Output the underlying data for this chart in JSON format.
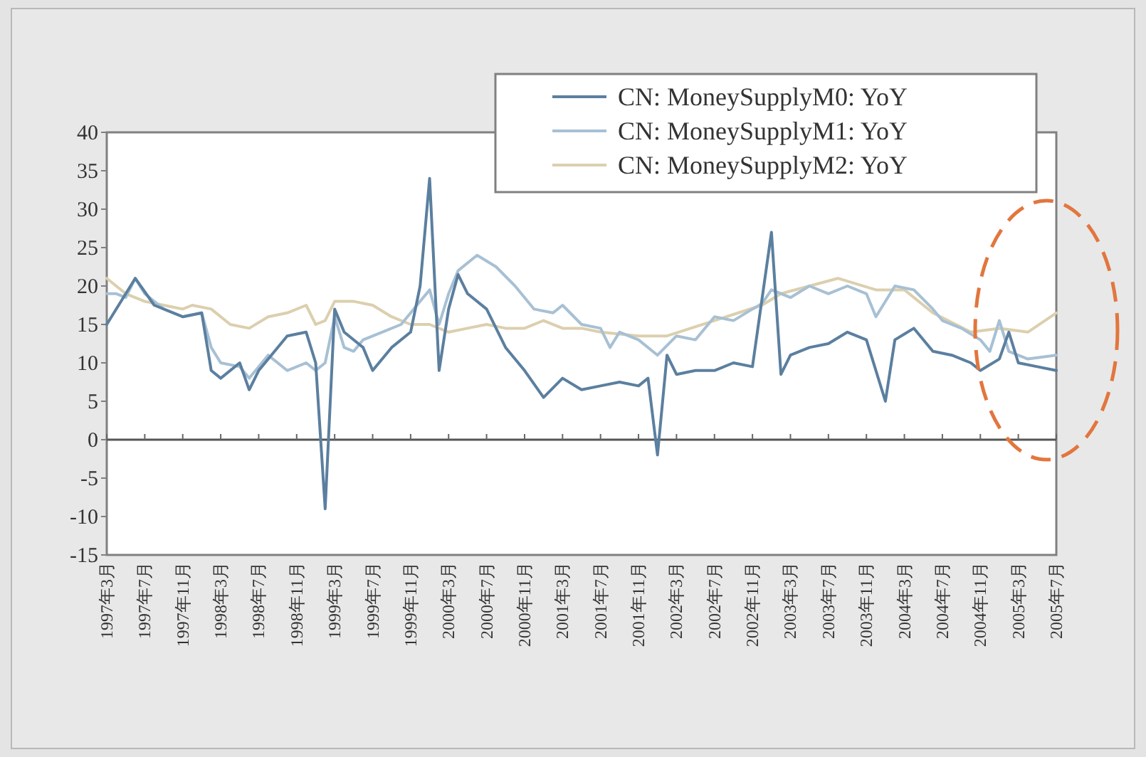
{
  "chart_data": {
    "type": "line",
    "xlim": [
      "1997-03",
      "2005-07"
    ],
    "ylim": [
      -15,
      40
    ],
    "yticks": [
      -15,
      -10,
      -5,
      0,
      5,
      10,
      15,
      20,
      25,
      30,
      35,
      40
    ],
    "xticks": [
      {
        "value": "1997-03",
        "label": "1997年3月"
      },
      {
        "value": "1997-07",
        "label": "1997年7月"
      },
      {
        "value": "1997-11",
        "label": "1997年11月"
      },
      {
        "value": "1998-03",
        "label": "1998年3月"
      },
      {
        "value": "1998-07",
        "label": "1998年7月"
      },
      {
        "value": "1998-11",
        "label": "1998年11月"
      },
      {
        "value": "1999-03",
        "label": "1999年3月"
      },
      {
        "value": "1999-07",
        "label": "1999年7月"
      },
      {
        "value": "1999-11",
        "label": "1999年11月"
      },
      {
        "value": "2000-03",
        "label": "2000年3月"
      },
      {
        "value": "2000-07",
        "label": "2000年7月"
      },
      {
        "value": "2000-11",
        "label": "2000年11月"
      },
      {
        "value": "2001-03",
        "label": "2001年3月"
      },
      {
        "value": "2001-07",
        "label": "2001年7月"
      },
      {
        "value": "2001-11",
        "label": "2001年11月"
      },
      {
        "value": "2002-03",
        "label": "2002年3月"
      },
      {
        "value": "2002-07",
        "label": "2002年7月"
      },
      {
        "value": "2002-11",
        "label": "2002年11月"
      },
      {
        "value": "2003-03",
        "label": "2003年3月"
      },
      {
        "value": "2003-07",
        "label": "2003年7月"
      },
      {
        "value": "2003-11",
        "label": "2003年11月"
      },
      {
        "value": "2004-03",
        "label": "2004年3月"
      },
      {
        "value": "2004-07",
        "label": "2004年7月"
      },
      {
        "value": "2004-11",
        "label": "2004年11月"
      },
      {
        "value": "2005-03",
        "label": "2005年3月"
      },
      {
        "value": "2005-07",
        "label": "2005年7月"
      }
    ],
    "legend": "top right",
    "ref_lines": [
      {
        "axis": "y",
        "value": 0
      }
    ],
    "series": [
      {
        "name": "CN: MoneySupplyM0: YoY",
        "color": "#5b7f9f",
        "x": [
          "1997-03",
          "1997-05",
          "1997-06",
          "1997-08",
          "1997-11",
          "1998-01",
          "1998-02",
          "1998-03",
          "1998-05",
          "1998-06",
          "1998-07",
          "1998-09",
          "1998-10",
          "1998-12",
          "1999-01",
          "1999-02",
          "1999-03",
          "1999-04",
          "1999-06",
          "1999-07",
          "1999-09",
          "1999-11",
          "1999-12",
          "2000-01",
          "2000-02",
          "2000-03",
          "2000-04",
          "2000-05",
          "2000-07",
          "2000-09",
          "2000-11",
          "2001-01",
          "2001-03",
          "2001-05",
          "2001-07",
          "2001-09",
          "2001-11",
          "2001-12",
          "2002-01",
          "2002-02",
          "2002-03",
          "2002-05",
          "2002-07",
          "2002-09",
          "2002-11",
          "2003-01",
          "2003-02",
          "2003-03",
          "2003-05",
          "2003-07",
          "2003-09",
          "2003-11",
          "2004-01",
          "2004-02",
          "2004-04",
          "2004-06",
          "2004-08",
          "2004-10",
          "2004-11",
          "2005-01",
          "2005-02",
          "2005-03",
          "2005-05",
          "2005-07"
        ],
        "values": [
          15,
          19,
          21,
          17.5,
          16,
          16.5,
          9,
          8,
          10,
          6.5,
          9,
          12,
          13.5,
          14,
          10,
          -9,
          17,
          14,
          12,
          9,
          12,
          14,
          20,
          34,
          9,
          17,
          21.5,
          19,
          17,
          12,
          9,
          5.5,
          8,
          6.5,
          7,
          7.5,
          7,
          8,
          -2,
          11,
          8.5,
          9,
          9,
          10,
          9.5,
          27,
          8.5,
          11,
          12,
          12.5,
          14,
          13,
          5,
          13,
          14.5,
          11.5,
          11,
          10,
          9,
          10.5,
          14,
          10,
          9.5,
          9
        ]
      },
      {
        "name": "CN: MoneySupplyM1: YoY",
        "color": "#a7c0d4",
        "x": [
          "1997-03",
          "1997-04",
          "1997-05",
          "1997-06",
          "1997-07",
          "1997-09",
          "1997-11",
          "1998-01",
          "1998-02",
          "1998-03",
          "1998-05",
          "1998-06",
          "1998-07",
          "1998-08",
          "1998-10",
          "1998-12",
          "1999-01",
          "1999-02",
          "1999-03",
          "1999-04",
          "1999-05",
          "1999-06",
          "1999-08",
          "1999-10",
          "1999-12",
          "2000-01",
          "2000-02",
          "2000-03",
          "2000-04",
          "2000-06",
          "2000-08",
          "2000-10",
          "2000-12",
          "2001-02",
          "2001-03",
          "2001-05",
          "2001-07",
          "2001-08",
          "2001-09",
          "2001-11",
          "2002-01",
          "2002-03",
          "2002-05",
          "2002-07",
          "2002-09",
          "2002-11",
          "2002-12",
          "2003-01",
          "2003-03",
          "2003-05",
          "2003-07",
          "2003-09",
          "2003-11",
          "2003-12",
          "2004-02",
          "2004-04",
          "2004-06",
          "2004-07",
          "2004-09",
          "2004-11",
          "2004-12",
          "2005-01",
          "2005-02",
          "2005-04",
          "2005-07"
        ],
        "values": [
          19,
          19,
          18.5,
          21,
          19,
          17,
          16,
          16.5,
          12,
          10,
          9.5,
          8,
          9.5,
          11,
          9,
          10,
          9,
          10,
          16,
          12,
          11.5,
          13,
          14,
          15,
          18,
          19.5,
          15,
          19,
          22,
          24,
          22.5,
          20,
          17,
          16.5,
          17.5,
          15,
          14.5,
          12,
          14,
          13,
          11,
          13.5,
          13,
          16,
          15.5,
          17,
          17.7,
          19.5,
          18.5,
          20,
          19,
          20,
          19,
          16,
          20,
          19.5,
          17,
          15.5,
          14.5,
          13,
          11.5,
          15.5,
          11.5,
          10.5,
          11
        ]
      },
      {
        "name": "CN: MoneySupplyM2: YoY",
        "color": "#dccfae",
        "x": [
          "1997-03",
          "1997-05",
          "1997-07",
          "1997-09",
          "1997-11",
          "1997-12",
          "1998-02",
          "1998-04",
          "1998-06",
          "1998-08",
          "1998-10",
          "1998-12",
          "1999-01",
          "1999-02",
          "1999-03",
          "1999-05",
          "1999-07",
          "1999-09",
          "1999-11",
          "2000-01",
          "2000-03",
          "2000-05",
          "2000-07",
          "2000-09",
          "2000-11",
          "2001-01",
          "2001-03",
          "2001-05",
          "2001-07",
          "2001-11",
          "2002-02",
          "2002-07",
          "2002-12",
          "2003-02",
          "2003-05",
          "2003-08",
          "2003-12",
          "2004-03",
          "2004-06",
          "2004-10",
          "2005-01",
          "2005-04",
          "2005-07"
        ],
        "values": [
          21,
          19,
          18,
          17.5,
          17,
          17.5,
          17,
          15,
          14.5,
          16,
          16.5,
          17.5,
          15,
          15.5,
          18,
          18,
          17.5,
          16,
          15,
          15,
          14,
          14.5,
          15,
          14.5,
          14.5,
          15.5,
          14.5,
          14.5,
          14,
          13.5,
          13.5,
          15.5,
          17.5,
          19,
          20,
          21,
          19.5,
          19.5,
          16.5,
          14,
          14.5,
          14,
          16.5
        ]
      }
    ]
  }
}
